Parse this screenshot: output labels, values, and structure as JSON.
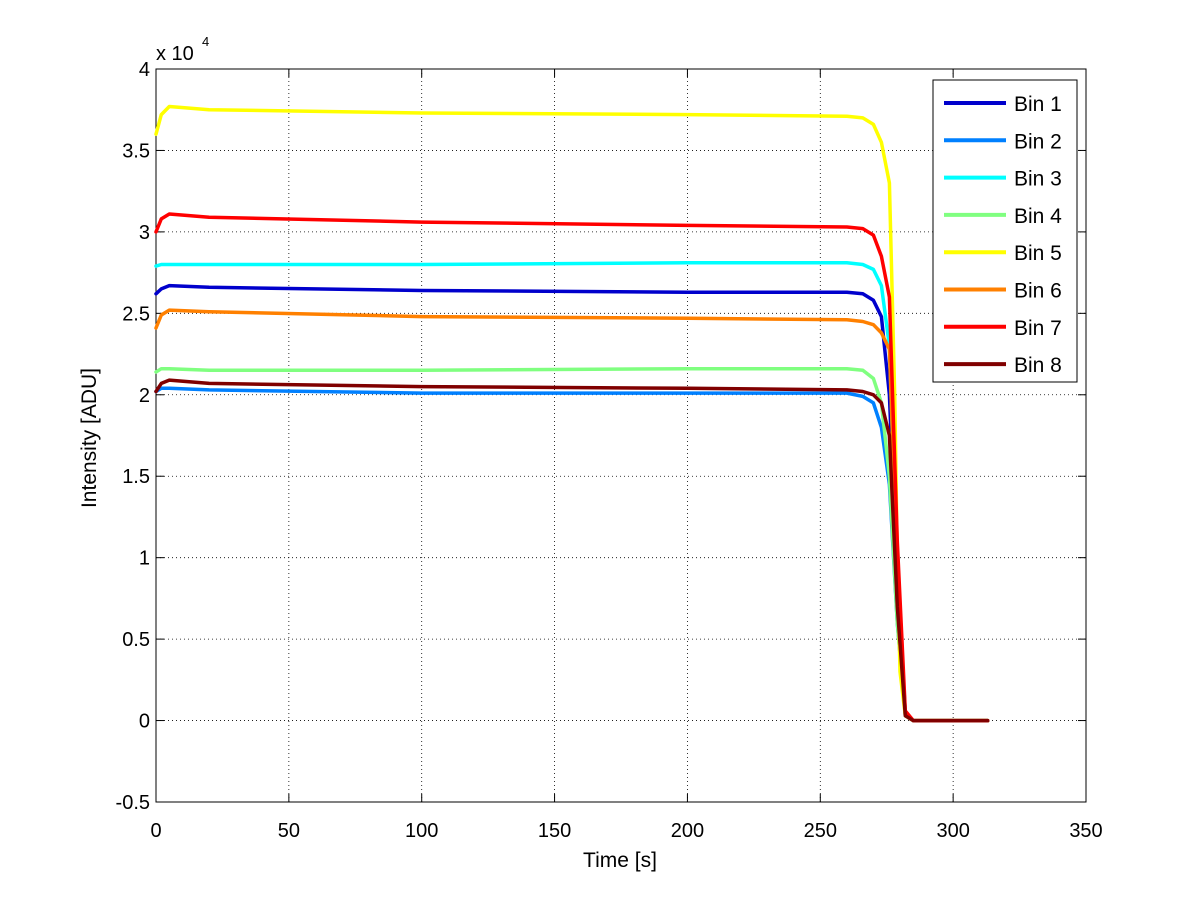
{
  "chart_data": {
    "type": "line",
    "title": "",
    "xlabel": "Time [s]",
    "ylabel": "Intensity [ADU]",
    "y_multiplier": {
      "base": "x 10",
      "exponent": "4"
    },
    "xlim": [
      0,
      350
    ],
    "ylim": [
      -0.5,
      4
    ],
    "xticks": [
      0,
      50,
      100,
      150,
      200,
      250,
      300,
      350
    ],
    "yticks": [
      -0.5,
      0,
      0.5,
      1,
      1.5,
      2,
      2.5,
      3,
      3.5,
      4
    ],
    "xtick_labels": [
      "0",
      "50",
      "100",
      "150",
      "200",
      "250",
      "300",
      "350"
    ],
    "ytick_labels": [
      "-0.5",
      "0",
      "0.5",
      "1",
      "1.5",
      "2",
      "2.5",
      "3",
      "3.5",
      "4"
    ],
    "grid": true,
    "legend_position": "top-right",
    "series": [
      {
        "name": "Bin 1",
        "color": "#0000cc",
        "x": [
          0,
          2,
          5,
          20,
          100,
          200,
          260,
          266,
          270,
          273,
          276,
          279,
          282,
          285,
          313
        ],
        "y": [
          2.62,
          2.65,
          2.67,
          2.66,
          2.64,
          2.63,
          2.63,
          2.62,
          2.58,
          2.48,
          2.0,
          0.8,
          0.05,
          0.0,
          0.0
        ]
      },
      {
        "name": "Bin 2",
        "color": "#0080ff",
        "x": [
          0,
          2,
          5,
          20,
          100,
          200,
          260,
          266,
          270,
          273,
          276,
          279,
          282,
          285,
          313
        ],
        "y": [
          2.02,
          2.04,
          2.04,
          2.03,
          2.01,
          2.01,
          2.01,
          1.99,
          1.95,
          1.8,
          1.45,
          0.6,
          0.03,
          0.0,
          0.0
        ]
      },
      {
        "name": "Bin 3",
        "color": "#00ffff",
        "x": [
          0,
          2,
          5,
          20,
          100,
          200,
          260,
          266,
          270,
          273,
          276,
          279,
          282,
          285,
          313
        ],
        "y": [
          2.79,
          2.8,
          2.8,
          2.8,
          2.8,
          2.81,
          2.81,
          2.8,
          2.77,
          2.67,
          2.3,
          0.9,
          0.05,
          0.0,
          0.0
        ]
      },
      {
        "name": "Bin 4",
        "color": "#80ff80",
        "x": [
          0,
          2,
          5,
          20,
          100,
          200,
          260,
          266,
          270,
          273,
          276,
          279,
          282,
          285,
          313
        ],
        "y": [
          2.14,
          2.16,
          2.16,
          2.15,
          2.15,
          2.16,
          2.16,
          2.15,
          2.1,
          1.95,
          1.5,
          0.6,
          0.03,
          0.0,
          0.0
        ]
      },
      {
        "name": "Bin 5",
        "color": "#ffff00",
        "x": [
          0,
          2,
          5,
          20,
          100,
          200,
          260,
          266,
          270,
          273,
          276,
          278,
          279,
          280,
          282,
          285,
          313
        ],
        "y": [
          3.6,
          3.72,
          3.77,
          3.75,
          3.73,
          3.72,
          3.71,
          3.7,
          3.66,
          3.55,
          3.3,
          2.0,
          1.0,
          0.3,
          0.03,
          0.0,
          0.0
        ]
      },
      {
        "name": "Bin 6",
        "color": "#ff8000",
        "x": [
          0,
          2,
          5,
          20,
          100,
          200,
          260,
          266,
          270,
          273,
          276,
          279,
          282,
          285,
          313
        ],
        "y": [
          2.41,
          2.49,
          2.52,
          2.51,
          2.48,
          2.47,
          2.46,
          2.45,
          2.43,
          2.38,
          2.28,
          0.9,
          0.05,
          0.0,
          0.0
        ]
      },
      {
        "name": "Bin 7",
        "color": "#ff0000",
        "x": [
          0,
          2,
          5,
          20,
          100,
          200,
          260,
          266,
          270,
          273,
          276,
          279,
          282,
          285,
          313
        ],
        "y": [
          3.0,
          3.08,
          3.11,
          3.09,
          3.06,
          3.04,
          3.03,
          3.02,
          2.98,
          2.85,
          2.6,
          1.1,
          0.06,
          0.0,
          0.0
        ]
      },
      {
        "name": "Bin 8",
        "color": "#800000",
        "x": [
          0,
          2,
          5,
          20,
          100,
          200,
          260,
          266,
          270,
          273,
          276,
          279,
          282,
          285,
          313
        ],
        "y": [
          2.02,
          2.07,
          2.09,
          2.07,
          2.05,
          2.04,
          2.03,
          2.02,
          2.0,
          1.95,
          1.75,
          0.7,
          0.03,
          0.0,
          0.0
        ]
      }
    ]
  }
}
